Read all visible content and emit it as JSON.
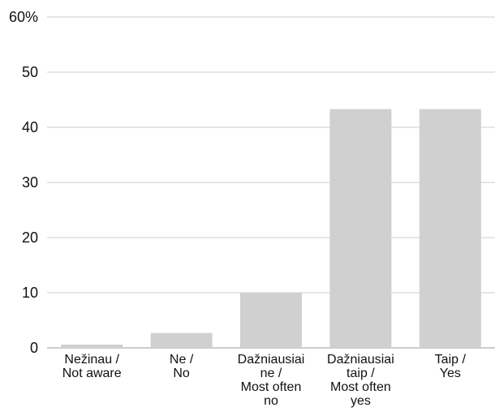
{
  "chart_data": {
    "type": "bar",
    "categories": [
      [
        "Nežinau /",
        "Not aware"
      ],
      [
        "Ne /",
        "No"
      ],
      [
        "Dažniausiai",
        "ne /",
        "Most often",
        "no"
      ],
      [
        "Dažniausiai",
        "taip /",
        "Most often",
        "yes"
      ],
      [
        "Taip /",
        "Yes"
      ]
    ],
    "values": [
      0.6,
      2.7,
      10.0,
      43.3,
      43.3
    ],
    "ylim": [
      0,
      60
    ],
    "yticks": [
      0,
      10,
      20,
      30,
      40,
      50,
      60
    ],
    "ytick_labels": [
      "0",
      "10",
      "20",
      "30",
      "40",
      "50",
      "60%"
    ],
    "grid": true,
    "colors": {
      "bar": "#d0d0d0",
      "grid": "#cccccc",
      "axis": "#999999",
      "text": "#111111"
    }
  }
}
